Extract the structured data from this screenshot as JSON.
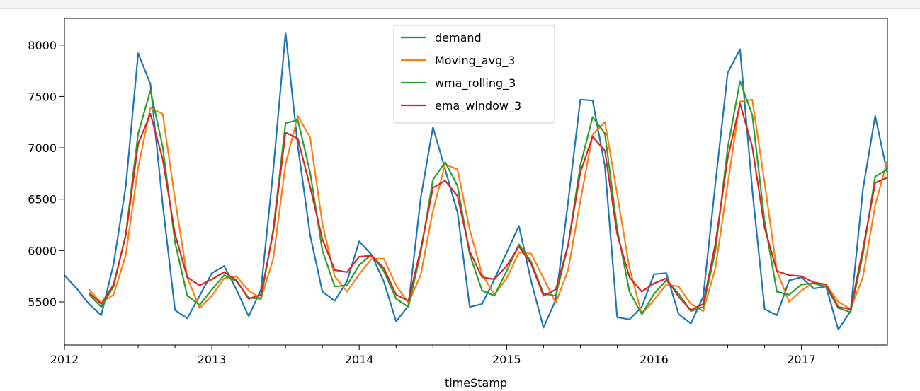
{
  "chart_data": {
    "type": "line",
    "title": "",
    "xlabel": "timeStamp",
    "ylabel": "",
    "xlim": [
      "2012-01",
      "2017-08"
    ],
    "ylim": [
      5080,
      8260
    ],
    "x_tick_labels": [
      "2012",
      "2013",
      "2014",
      "2015",
      "2016",
      "2017"
    ],
    "y_ticks": [
      5500,
      6000,
      6500,
      7000,
      7500,
      8000
    ],
    "y_tick_labels": [
      "5500",
      "6000",
      "6500",
      "7000",
      "7500",
      "8000"
    ],
    "grid": false,
    "legend_position": "upper center",
    "x": [
      "2012-01",
      "2012-02",
      "2012-03",
      "2012-04",
      "2012-05",
      "2012-06",
      "2012-07",
      "2012-08",
      "2012-09",
      "2012-10",
      "2012-11",
      "2012-12",
      "2013-01",
      "2013-02",
      "2013-03",
      "2013-04",
      "2013-05",
      "2013-06",
      "2013-07",
      "2013-08",
      "2013-09",
      "2013-10",
      "2013-11",
      "2013-12",
      "2014-01",
      "2014-02",
      "2014-03",
      "2014-04",
      "2014-05",
      "2014-06",
      "2014-07",
      "2014-08",
      "2014-09",
      "2014-10",
      "2014-11",
      "2014-12",
      "2015-01",
      "2015-02",
      "2015-03",
      "2015-04",
      "2015-05",
      "2015-06",
      "2015-07",
      "2015-08",
      "2015-09",
      "2015-10",
      "2015-11",
      "2015-12",
      "2016-01",
      "2016-02",
      "2016-03",
      "2016-04",
      "2016-05",
      "2016-06",
      "2016-07",
      "2016-08",
      "2016-09",
      "2016-10",
      "2016-11",
      "2016-12",
      "2017-01",
      "2017-02",
      "2017-03",
      "2017-04",
      "2017-05",
      "2017-06",
      "2017-07",
      "2017-08"
    ],
    "series": [
      {
        "name": "demand",
        "color": "#1f77b4",
        "values": [
          5760,
          5630,
          5480,
          5370,
          5870,
          6630,
          7920,
          7620,
          6450,
          5420,
          5340,
          5560,
          5780,
          5850,
          5620,
          5360,
          5620,
          6780,
          8120,
          7020,
          6150,
          5600,
          5510,
          5700,
          6090,
          5960,
          5700,
          5310,
          5460,
          6510,
          7200,
          6790,
          6370,
          5450,
          5480,
          5720,
          5980,
          6240,
          5700,
          5250,
          5520,
          6470,
          7470,
          7460,
          6820,
          5350,
          5330,
          5450,
          5770,
          5780,
          5380,
          5290,
          5550,
          6660,
          7730,
          7960,
          6590,
          5430,
          5370,
          5710,
          5740,
          5630,
          5650,
          5230,
          5410,
          6590,
          7310,
          6750
        ]
      },
      {
        "name": "Moving_avg_3",
        "color": "#ff7f0e",
        "values": [
          null,
          null,
          5620,
          5490,
          5570,
          5960,
          6810,
          7390,
          7330,
          6500,
          5740,
          5440,
          5560,
          5730,
          5750,
          5610,
          5530,
          5920,
          6840,
          7310,
          7100,
          6260,
          5750,
          5600,
          5770,
          5920,
          5920,
          5660,
          5490,
          5760,
          6390,
          6840,
          6790,
          6200,
          5770,
          5570,
          5730,
          5980,
          5970,
          5730,
          5490,
          5810,
          6480,
          7130,
          7250,
          6550,
          5830,
          5380,
          5520,
          5670,
          5650,
          5480,
          5410,
          5830,
          6650,
          7450,
          7470,
          6660,
          5800,
          5500,
          5610,
          5690,
          5670,
          5500,
          5430,
          5740,
          6440,
          6880
        ]
      },
      {
        "name": "wma_rolling_3",
        "color": "#2ca02c",
        "values": [
          null,
          null,
          5570,
          5450,
          5650,
          6160,
          7140,
          7560,
          7010,
          6080,
          5560,
          5470,
          5620,
          5760,
          5700,
          5540,
          5530,
          6200,
          7240,
          7270,
          6760,
          6000,
          5650,
          5660,
          5860,
          5960,
          5800,
          5530,
          5450,
          5980,
          6690,
          6860,
          6630,
          5960,
          5610,
          5560,
          5800,
          6060,
          5890,
          5580,
          5560,
          6050,
          6830,
          7300,
          7140,
          6210,
          5600,
          5380,
          5580,
          5710,
          5580,
          5410,
          5450,
          6000,
          7000,
          7650,
          7320,
          6280,
          5600,
          5570,
          5670,
          5680,
          5650,
          5440,
          5400,
          5960,
          6720,
          6790
        ]
      },
      {
        "name": "ema_window_3",
        "color": "#d62728",
        "values": [
          null,
          null,
          5590,
          5480,
          5670,
          6150,
          7040,
          7330,
          6890,
          6160,
          5740,
          5660,
          5720,
          5790,
          5710,
          5530,
          5570,
          6180,
          7150,
          7090,
          6620,
          6110,
          5810,
          5790,
          5940,
          5950,
          5830,
          5570,
          5510,
          6010,
          6610,
          6680,
          6530,
          5990,
          5740,
          5720,
          5850,
          6040,
          5870,
          5560,
          5620,
          6050,
          6760,
          7110,
          6970,
          6160,
          5740,
          5600,
          5680,
          5730,
          5550,
          5420,
          5480,
          6070,
          6900,
          7430,
          7010,
          6220,
          5800,
          5760,
          5750,
          5690,
          5670,
          5450,
          5430,
          6010,
          6660,
          6710
        ]
      }
    ]
  }
}
